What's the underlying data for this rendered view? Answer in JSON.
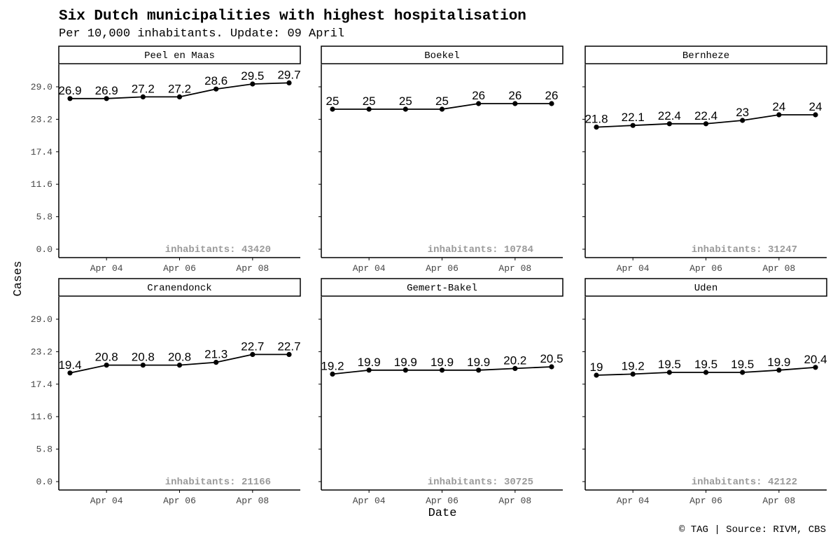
{
  "chart_data": {
    "type": "line",
    "title": "Six Dutch municipalities with highest hospitalisation",
    "subtitle": "Per 10,000 inhabitants. Update: 09 April",
    "xlabel": "Date",
    "ylabel": "Cases",
    "caption": "© TAG | Source: RIVM, CBS",
    "dates": [
      "2020-04-03",
      "2020-04-04",
      "2020-04-05",
      "2020-04-06",
      "2020-04-07",
      "2020-04-08",
      "2020-04-09"
    ],
    "x_ticks": [
      "Apr 04",
      "Apr 06",
      "Apr 08"
    ],
    "y_ticks": [
      "0.0",
      "5.8",
      "11.6",
      "17.4",
      "23.2",
      "29.0"
    ],
    "ylim": [
      -1.5,
      33
    ],
    "grid": false,
    "panels": [
      {
        "name": "Peel en Maas",
        "inhabitants_label": "inhabitants: 43420",
        "values": [
          26.9,
          26.9,
          27.2,
          27.2,
          28.6,
          29.5,
          29.7
        ],
        "labels": [
          "26.9",
          "26.9",
          "27.2",
          "27.2",
          "28.6",
          "29.5",
          "29.7"
        ]
      },
      {
        "name": "Boekel",
        "inhabitants_label": "inhabitants: 10784",
        "values": [
          25,
          25,
          25,
          25,
          26,
          26,
          26
        ],
        "labels": [
          "25",
          "25",
          "25",
          "25",
          "26",
          "26",
          "26"
        ]
      },
      {
        "name": "Bernheze",
        "inhabitants_label": "inhabitants: 31247",
        "values": [
          21.8,
          22.1,
          22.4,
          22.4,
          23,
          24,
          24
        ],
        "labels": [
          "21.8",
          "22.1",
          "22.4",
          "22.4",
          "23",
          "24",
          "24"
        ]
      },
      {
        "name": "Cranendonck",
        "inhabitants_label": "inhabitants: 21166",
        "values": [
          19.4,
          20.8,
          20.8,
          20.8,
          21.3,
          22.7,
          22.7
        ],
        "labels": [
          "19.4",
          "20.8",
          "20.8",
          "20.8",
          "21.3",
          "22.7",
          "22.7"
        ]
      },
      {
        "name": "Gemert-Bakel",
        "inhabitants_label": "inhabitants: 30725",
        "values": [
          19.2,
          19.9,
          19.9,
          19.9,
          19.9,
          20.2,
          20.5
        ],
        "labels": [
          "19.2",
          "19.9",
          "19.9",
          "19.9",
          "19.9",
          "20.2",
          "20.5"
        ]
      },
      {
        "name": "Uden",
        "inhabitants_label": "inhabitants: 42122",
        "values": [
          19,
          19.2,
          19.5,
          19.5,
          19.5,
          19.9,
          20.4
        ],
        "labels": [
          "19",
          "19.2",
          "19.5",
          "19.5",
          "19.5",
          "19.9",
          "20.4"
        ]
      }
    ]
  }
}
